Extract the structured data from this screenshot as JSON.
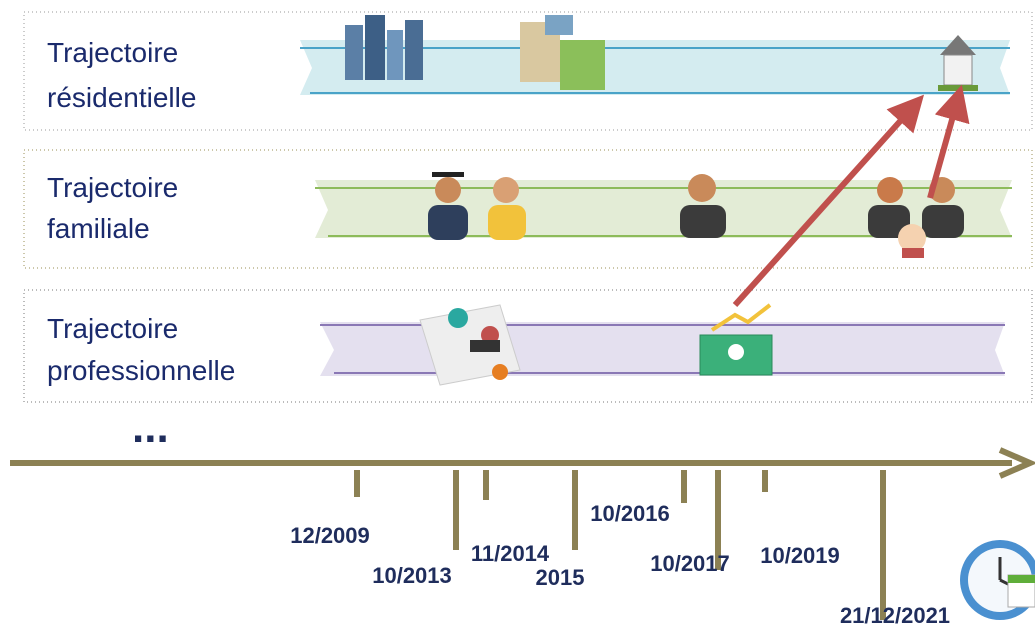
{
  "trajectories": [
    {
      "lines": [
        "Trajectoire",
        "résidentielle"
      ]
    },
    {
      "lines": [
        "Trajectoire",
        "familiale"
      ]
    },
    {
      "lines": [
        "Trajectoire",
        "professionnelle"
      ]
    }
  ],
  "ellipsis": "...",
  "timeline": {
    "dates": [
      "12/2009",
      "10/2013",
      "11/2014",
      "2015",
      "10/2016",
      "10/2017",
      "10/2019",
      "21/12/2021"
    ]
  }
}
